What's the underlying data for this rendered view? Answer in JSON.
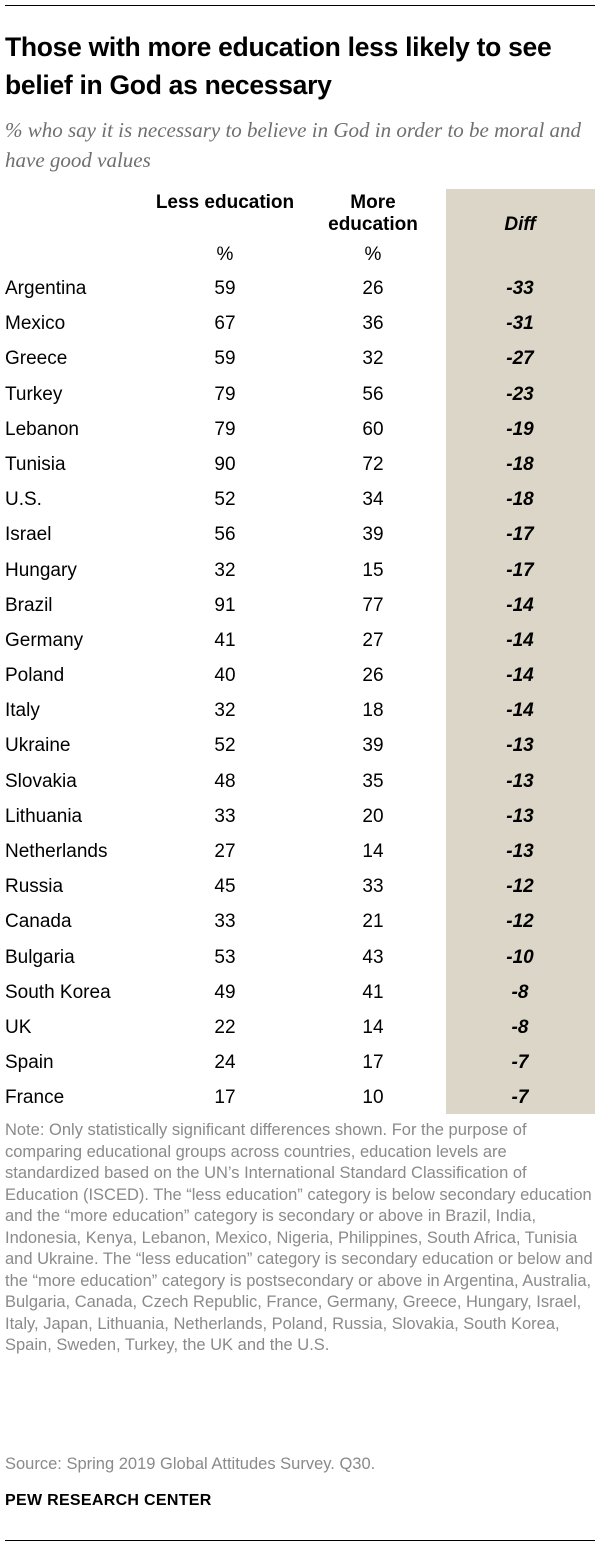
{
  "header": {
    "title": "Those with more education less likely to see belief in God as necessary",
    "subtitle": "% who say it is necessary to believe in God in order to be moral and have good values"
  },
  "columns": {
    "less": "Less education",
    "more": "More education",
    "diff": "Diff",
    "unit": "%"
  },
  "chart_data": {
    "type": "table",
    "title": "Those with more education less likely to see belief in God as necessary",
    "subtitle": "% who say it is necessary to believe in God in order to be moral and have good values",
    "columns": [
      "Less education",
      "More education",
      "Diff"
    ],
    "rows": [
      {
        "country": "Argentina",
        "less": "59",
        "more": "26",
        "diff": "-33"
      },
      {
        "country": "Mexico",
        "less": "67",
        "more": "36",
        "diff": "-31"
      },
      {
        "country": "Greece",
        "less": "59",
        "more": "32",
        "diff": "-27"
      },
      {
        "country": "Turkey",
        "less": "79",
        "more": "56",
        "diff": "-23"
      },
      {
        "country": "Lebanon",
        "less": "79",
        "more": "60",
        "diff": "-19"
      },
      {
        "country": "Tunisia",
        "less": "90",
        "more": "72",
        "diff": "-18"
      },
      {
        "country": "U.S.",
        "less": "52",
        "more": "34",
        "diff": "-18"
      },
      {
        "country": "Israel",
        "less": "56",
        "more": "39",
        "diff": "-17"
      },
      {
        "country": "Hungary",
        "less": "32",
        "more": "15",
        "diff": "-17"
      },
      {
        "country": "Brazil",
        "less": "91",
        "more": "77",
        "diff": "-14"
      },
      {
        "country": "Germany",
        "less": "41",
        "more": "27",
        "diff": "-14"
      },
      {
        "country": "Poland",
        "less": "40",
        "more": "26",
        "diff": "-14"
      },
      {
        "country": "Italy",
        "less": "32",
        "more": "18",
        "diff": "-14"
      },
      {
        "country": "Ukraine",
        "less": "52",
        "more": "39",
        "diff": "-13"
      },
      {
        "country": "Slovakia",
        "less": "48",
        "more": "35",
        "diff": "-13"
      },
      {
        "country": "Lithuania",
        "less": "33",
        "more": "20",
        "diff": "-13"
      },
      {
        "country": "Netherlands",
        "less": "27",
        "more": "14",
        "diff": "-13"
      },
      {
        "country": "Russia",
        "less": "45",
        "more": "33",
        "diff": "-12"
      },
      {
        "country": "Canada",
        "less": "33",
        "more": "21",
        "diff": "-12"
      },
      {
        "country": "Bulgaria",
        "less": "53",
        "more": "43",
        "diff": "-10"
      },
      {
        "country": "South Korea",
        "less": "49",
        "more": "41",
        "diff": "-8"
      },
      {
        "country": "UK",
        "less": "22",
        "more": "14",
        "diff": "-8"
      },
      {
        "country": "Spain",
        "less": "24",
        "more": "17",
        "diff": "-7"
      },
      {
        "country": "France",
        "less": "17",
        "more": "10",
        "diff": "-7"
      }
    ]
  },
  "footer": {
    "note": "Note: Only statistically significant differences shown. For the purpose of comparing educational groups across countries, education levels are standardized based on the UN’s International Standard Classification of Education (ISCED). The “less education” category is below secondary education and the “more education” category is secondary or above in Brazil, India, Indonesia, Kenya, Lebanon, Mexico, Nigeria, Philippines, South Africa, Tunisia and Ukraine. The “less education” category is secondary education or below and the “more education” category is postsecondary or above in Argentina, Australia, Bulgaria, Canada, Czech Republic, France, Germany, Greece, Hungary, Israel, Italy, Japan, Lithuania, Netherlands, Poland, Russia, Slovakia, South Korea, Spain, Sweden, Turkey, the UK and the U.S.",
    "source": "Source: Spring 2019 Global Attitudes Survey. Q30.",
    "brand": "PEW RESEARCH CENTER"
  },
  "colors": {
    "diff_column_bg": "#dcd6c8",
    "note_text": "#8a8a8a",
    "subtitle_text": "#6f6f6f"
  }
}
